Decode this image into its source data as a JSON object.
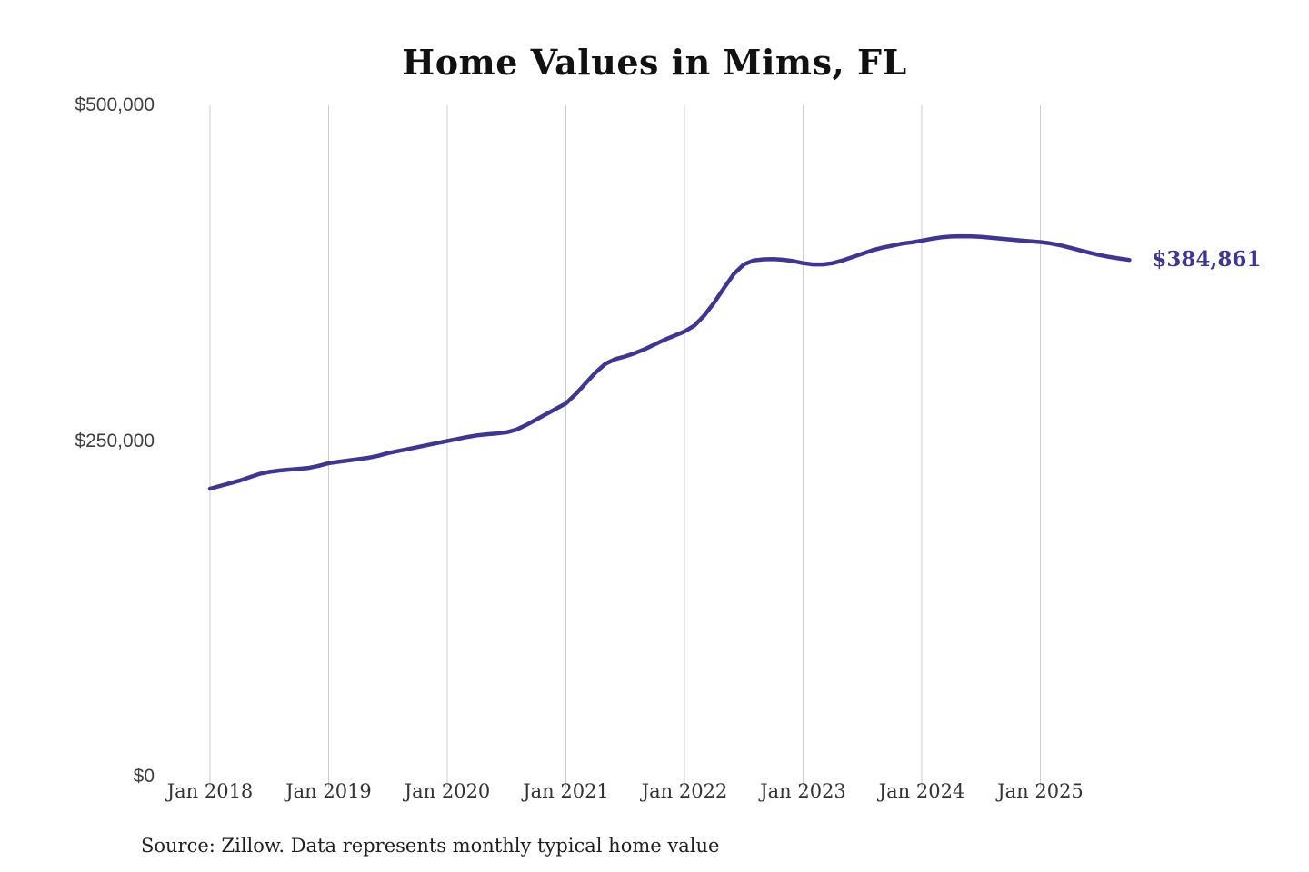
{
  "title": "Home Values in Mims, FL",
  "source_note": "Source: Zillow. Data represents monthly typical home value",
  "current_value_label": "$384,861",
  "colors": {
    "line": "#3e3696",
    "value_label_text": "#3e3696",
    "grid": "#cdcdcd",
    "title_text": "#111111",
    "y_tick_text": "#3f3f3f",
    "x_tick_text": "#333333",
    "source_text": "#1f1f1f"
  },
  "chart_data": {
    "type": "line",
    "title": "Home Values in Mims, FL",
    "xlabel": "",
    "ylabel": "",
    "ylim": [
      0,
      500000
    ],
    "grid": "vertical-only",
    "legend": "none",
    "y_ticks": [
      {
        "value": 500000,
        "label": "$500,000"
      },
      {
        "value": 250000,
        "label": "$250,000"
      },
      {
        "value": 0,
        "label": "$0"
      }
    ],
    "x_ticks": [
      "Jan 2018",
      "Jan 2019",
      "Jan 2020",
      "Jan 2021",
      "Jan 2022",
      "Jan 2023",
      "Jan 2024",
      "Jan 2025"
    ],
    "series": [
      {
        "name": "Monthly typical home value",
        "end_label": "$384,861",
        "months": [
          "2018-01",
          "2018-02",
          "2018-03",
          "2018-04",
          "2018-05",
          "2018-06",
          "2018-07",
          "2018-08",
          "2018-09",
          "2018-10",
          "2018-11",
          "2018-12",
          "2019-01",
          "2019-02",
          "2019-03",
          "2019-04",
          "2019-05",
          "2019-06",
          "2019-07",
          "2019-08",
          "2019-09",
          "2019-10",
          "2019-11",
          "2019-12",
          "2020-01",
          "2020-02",
          "2020-03",
          "2020-04",
          "2020-05",
          "2020-06",
          "2020-07",
          "2020-08",
          "2020-09",
          "2020-10",
          "2020-11",
          "2020-12",
          "2021-01",
          "2021-02",
          "2021-03",
          "2021-04",
          "2021-05",
          "2021-06",
          "2021-07",
          "2021-08",
          "2021-09",
          "2021-10",
          "2021-11",
          "2021-12",
          "2022-01",
          "2022-02",
          "2022-03",
          "2022-04",
          "2022-05",
          "2022-06",
          "2022-07",
          "2022-08",
          "2022-09",
          "2022-10",
          "2022-11",
          "2022-12",
          "2023-01",
          "2023-02",
          "2023-03",
          "2023-04",
          "2023-05",
          "2023-06",
          "2023-07",
          "2023-08",
          "2023-09",
          "2023-10",
          "2023-11",
          "2023-12",
          "2024-01",
          "2024-02",
          "2024-03",
          "2024-04",
          "2024-05",
          "2024-06",
          "2024-07",
          "2024-08",
          "2024-09",
          "2024-10",
          "2024-11",
          "2024-12",
          "2025-01",
          "2025-02",
          "2025-03",
          "2025-04",
          "2025-05",
          "2025-06",
          "2025-07",
          "2025-08",
          "2025-09",
          "2025-10"
        ],
        "values": [
          214500,
          216500,
          218500,
          220500,
          223000,
          225500,
          227000,
          228000,
          228700,
          229300,
          230000,
          231500,
          233500,
          234500,
          235500,
          236500,
          237500,
          239000,
          241000,
          242500,
          244000,
          245500,
          247000,
          248500,
          250000,
          251500,
          253000,
          254200,
          255000,
          255600,
          256500,
          258500,
          262000,
          266000,
          270000,
          274000,
          278000,
          285000,
          293000,
          301000,
          307500,
          311000,
          313000,
          315500,
          318500,
          322000,
          325500,
          328500,
          331500,
          336000,
          343500,
          353000,
          364000,
          374500,
          381500,
          384500,
          385300,
          385500,
          385000,
          384000,
          382500,
          381500,
          381500,
          382500,
          384500,
          387000,
          389500,
          392000,
          394000,
          395500,
          397000,
          398000,
          399200,
          400600,
          401700,
          402300,
          402500,
          402400,
          402000,
          401400,
          400700,
          400100,
          399400,
          398800,
          398200,
          397200,
          395800,
          394000,
          392000,
          390200,
          388500,
          387100,
          385900,
          384861
        ]
      }
    ]
  }
}
